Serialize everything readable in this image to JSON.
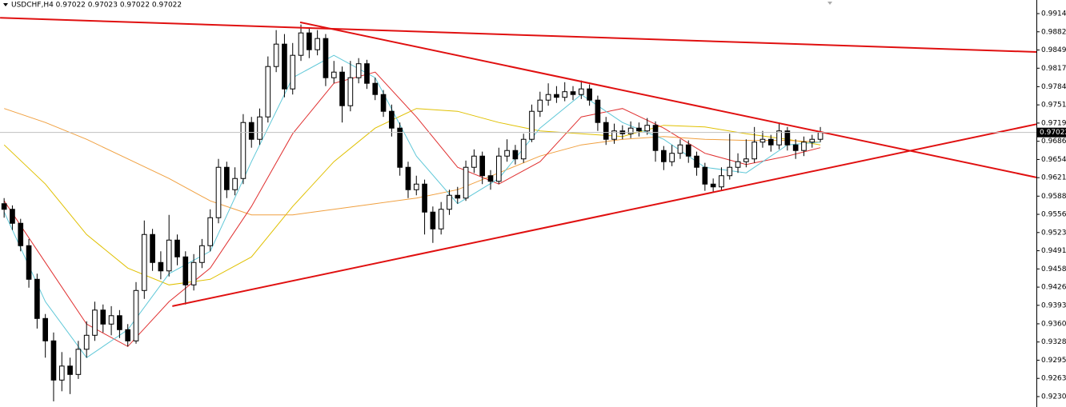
{
  "chart_data": {
    "type": "candlestick",
    "title": "USDCHF,H4  0.97022 0.97023 0.97022 0.97022",
    "up_color": "#ffffff",
    "down_color": "#000000",
    "wick_color": "#000000",
    "xlim": [
      -0.5,
      125.2
    ],
    "ylim": [
      0.92119,
      0.99388
    ],
    "yticks": [
      0.99145,
      {
        "value": 0.9882,
        "label": "0.98820"
      },
      0.98495,
      {
        "value": 0.9817,
        "label": "0.98170"
      },
      {
        "value": 0.9784,
        "label": "0.97840"
      },
      0.97515,
      {
        "value": 0.9719,
        "label": "0.97190"
      },
      0.96865,
      {
        "value": 0.9654,
        "label": "0.96540"
      },
      0.96215,
      0.95885,
      {
        "value": 0.9556,
        "label": "0.95560"
      },
      0.95235,
      {
        "value": 0.9491,
        "label": "0.94910"
      },
      0.94585,
      {
        "value": 0.9426,
        "label": "0.94260"
      },
      0.93935,
      0.93605,
      {
        "value": 0.9328,
        "label": "0.93280"
      },
      0.92955,
      {
        "value": 0.9263,
        "label": "0.92630"
      },
      0.92305
    ],
    "candles": {
      "open": [
        0.9575,
        0.9565,
        0.954,
        0.95,
        0.944,
        0.937,
        0.933,
        0.926,
        0.9285,
        0.927,
        0.9315,
        0.934,
        0.9385,
        0.936,
        0.9375,
        0.935,
        0.933,
        0.942,
        0.952,
        0.947,
        0.9455,
        0.951,
        0.948,
        0.943,
        0.947,
        0.95,
        0.955,
        0.964,
        0.96,
        0.962,
        0.972,
        0.969,
        0.973,
        0.982,
        0.986,
        0.978,
        0.984,
        0.988,
        0.985,
        0.987,
        0.98,
        0.981,
        0.975,
        0.98,
        0.9825,
        0.979,
        0.977,
        0.974,
        0.971,
        0.964,
        0.96,
        0.961,
        0.956,
        0.953,
        0.9565,
        0.959,
        0.9585,
        0.964,
        0.966,
        0.9625,
        0.9615,
        0.966,
        0.967,
        0.9655,
        0.969,
        0.974,
        0.976,
        0.977,
        0.9765,
        0.9775,
        0.977,
        0.978,
        0.976,
        0.972,
        0.969,
        0.9705,
        0.97,
        0.971,
        0.9705,
        0.9715,
        0.967,
        0.965,
        0.9665,
        0.968,
        0.966,
        0.964,
        0.961,
        0.9605,
        0.9625,
        0.964,
        0.965,
        0.9655,
        0.9685,
        0.969,
        0.968,
        0.9705,
        0.968,
        0.967,
        0.9685,
        0.969
      ],
      "high": [
        0.9585,
        0.9572,
        0.9548,
        0.9512,
        0.945,
        0.9378,
        0.9345,
        0.931,
        0.93,
        0.933,
        0.9365,
        0.94,
        0.9395,
        0.9392,
        0.9385,
        0.936,
        0.9435,
        0.9545,
        0.953,
        0.949,
        0.9555,
        0.952,
        0.949,
        0.9485,
        0.9512,
        0.9565,
        0.9655,
        0.965,
        0.964,
        0.9735,
        0.973,
        0.9745,
        0.9838,
        0.9885,
        0.9878,
        0.9862,
        0.9895,
        0.989,
        0.9885,
        0.9878,
        0.983,
        0.982,
        0.983,
        0.9835,
        0.9832,
        0.98,
        0.9778,
        0.9752,
        0.972,
        0.965,
        0.9625,
        0.9618,
        0.957,
        0.9578,
        0.96,
        0.9605,
        0.9652,
        0.9672,
        0.9668,
        0.9635,
        0.9675,
        0.969,
        0.968,
        0.97,
        0.9752,
        0.9775,
        0.979,
        0.9785,
        0.9792,
        0.9785,
        0.9795,
        0.9788,
        0.9768,
        0.973,
        0.9718,
        0.9715,
        0.9722,
        0.972,
        0.9728,
        0.9722,
        0.9678,
        0.968,
        0.969,
        0.9688,
        0.9668,
        0.9648,
        0.962,
        0.964,
        0.97,
        0.9665,
        0.969,
        0.9712,
        0.9705,
        0.9698,
        0.972,
        0.9712,
        0.969,
        0.9695,
        0.9698,
        0.9712
      ],
      "low": [
        0.955,
        0.9528,
        0.949,
        0.9425,
        0.9352,
        0.93,
        0.9222,
        0.924,
        0.9235,
        0.9262,
        0.93,
        0.933,
        0.9345,
        0.934,
        0.9335,
        0.932,
        0.9325,
        0.9405,
        0.9455,
        0.944,
        0.9445,
        0.9465,
        0.9395,
        0.942,
        0.946,
        0.949,
        0.954,
        0.9585,
        0.959,
        0.961,
        0.9675,
        0.968,
        0.972,
        0.981,
        0.9765,
        0.977,
        0.983,
        0.9835,
        0.984,
        0.9785,
        0.979,
        0.972,
        0.974,
        0.979,
        0.978,
        0.976,
        0.973,
        0.9695,
        0.9625,
        0.9585,
        0.959,
        0.952,
        0.9505,
        0.952,
        0.9555,
        0.9575,
        0.958,
        0.963,
        0.961,
        0.96,
        0.961,
        0.965,
        0.9645,
        0.9648,
        0.9685,
        0.973,
        0.975,
        0.9755,
        0.9758,
        0.976,
        0.9762,
        0.975,
        0.9705,
        0.968,
        0.9682,
        0.969,
        0.9692,
        0.9695,
        0.9698,
        0.965,
        0.9635,
        0.9642,
        0.9655,
        0.9648,
        0.9625,
        0.9598,
        0.9595,
        0.9598,
        0.9618,
        0.963,
        0.964,
        0.9648,
        0.9675,
        0.9668,
        0.9672,
        0.967,
        0.9655,
        0.966,
        0.9675,
        0.9685
      ],
      "close": [
        0.9565,
        0.954,
        0.95,
        0.944,
        0.937,
        0.933,
        0.926,
        0.9285,
        0.927,
        0.9315,
        0.934,
        0.9385,
        0.936,
        0.9375,
        0.935,
        0.933,
        0.942,
        0.952,
        0.947,
        0.9455,
        0.951,
        0.948,
        0.943,
        0.947,
        0.95,
        0.955,
        0.964,
        0.96,
        0.962,
        0.972,
        0.969,
        0.973,
        0.982,
        0.986,
        0.978,
        0.984,
        0.988,
        0.985,
        0.987,
        0.98,
        0.981,
        0.975,
        0.98,
        0.9825,
        0.979,
        0.977,
        0.974,
        0.971,
        0.964,
        0.96,
        0.961,
        0.956,
        0.953,
        0.9565,
        0.959,
        0.9585,
        0.964,
        0.966,
        0.9625,
        0.9615,
        0.966,
        0.967,
        0.9655,
        0.969,
        0.974,
        0.976,
        0.977,
        0.9765,
        0.9775,
        0.977,
        0.978,
        0.976,
        0.972,
        0.969,
        0.9705,
        0.97,
        0.971,
        0.9705,
        0.9715,
        0.967,
        0.965,
        0.9665,
        0.968,
        0.966,
        0.964,
        0.961,
        0.9605,
        0.9625,
        0.964,
        0.965,
        0.9655,
        0.9685,
        0.969,
        0.968,
        0.9705,
        0.968,
        0.967,
        0.9685,
        0.969,
        0.97022
      ]
    },
    "ma_x": [
      0,
      5,
      10,
      15,
      20,
      25,
      30,
      35,
      40,
      45,
      50,
      55,
      60,
      65,
      70,
      75,
      80,
      85,
      90,
      95,
      99
    ],
    "ma": [
      {
        "color": "#e0c000",
        "values": [
          0.968,
          0.961,
          0.952,
          0.946,
          0.943,
          0.944,
          0.948,
          0.957,
          0.965,
          0.971,
          0.9745,
          0.974,
          0.972,
          0.9705,
          0.97,
          0.9695,
          0.9715,
          0.9712,
          0.97,
          0.969,
          0.968
        ]
      },
      {
        "color": "#f0a040",
        "values": [
          0.9745,
          0.972,
          0.969,
          0.9655,
          0.962,
          0.958,
          0.9555,
          0.9555,
          0.9565,
          0.9575,
          0.9585,
          0.96,
          0.963,
          0.966,
          0.968,
          0.969,
          0.9695,
          0.969,
          0.9688,
          0.9688,
          0.9685
        ]
      },
      {
        "color": "#e03030",
        "values": [
          0.958,
          0.947,
          0.936,
          0.932,
          0.94,
          0.946,
          0.957,
          0.97,
          0.979,
          0.981,
          0.973,
          0.964,
          0.961,
          0.965,
          0.973,
          0.9745,
          0.971,
          0.9665,
          0.9645,
          0.966,
          0.9675
        ]
      },
      {
        "color": "#60c8d8",
        "values": [
          0.956,
          0.94,
          0.93,
          0.935,
          0.945,
          0.949,
          0.965,
          0.98,
          0.984,
          0.98,
          0.966,
          0.9575,
          0.962,
          0.971,
          0.977,
          0.972,
          0.969,
          0.964,
          0.963,
          0.968,
          0.9685
        ]
      }
    ],
    "trendlines": [
      {
        "color": "#e01010",
        "x": [
          -0.49,
          125.2
        ],
        "y": [
          0.9907,
          0.9846
        ]
      },
      {
        "color": "#e01010",
        "x": [
          35.9,
          125.2
        ],
        "y": [
          0.9899,
          0.9622
        ]
      },
      {
        "color": "#e01010",
        "x": [
          20.4,
          125.2
        ],
        "y": [
          0.9392,
          0.9717
        ]
      }
    ]
  }
}
